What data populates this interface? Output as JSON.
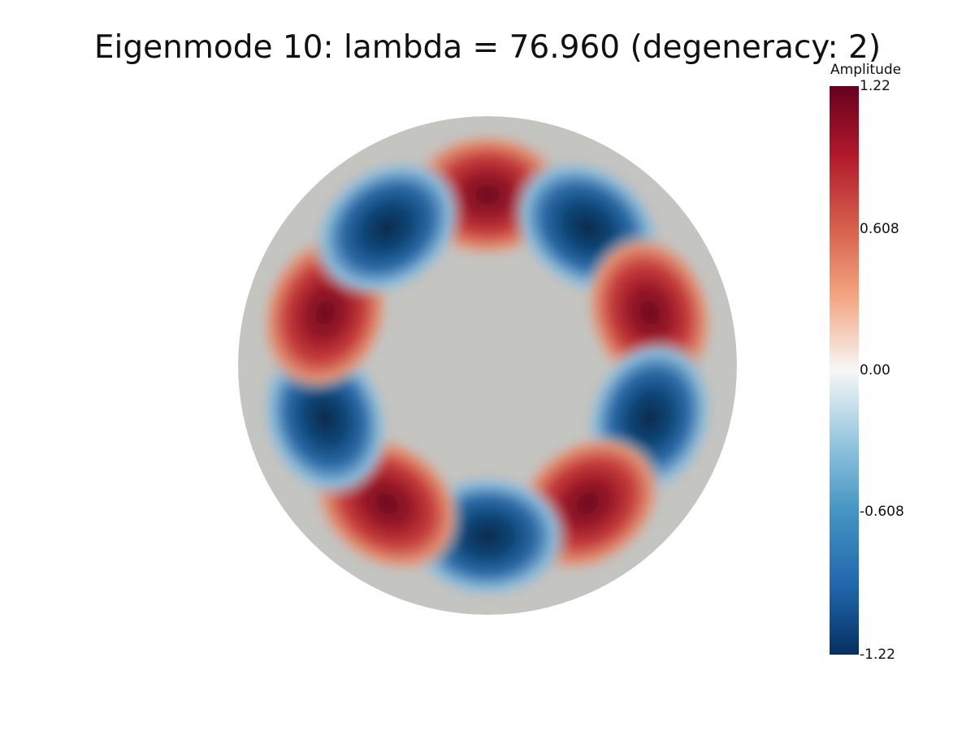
{
  "title": "Eigenmode 10: lambda = 76.960 (degeneracy: 2)",
  "chart_data": {
    "type": "heatmap",
    "title": "Eigenmode 10: lambda = 76.960 (degeneracy: 2)",
    "mode_index": 10,
    "lambda": 76.96,
    "degeneracy": 2,
    "field": "Amplitude",
    "domain_shape": "disk",
    "pattern": "five dipole-like lobe pairs around the rim (10 alternating positive/negative lobes), near-zero center",
    "lobes": [
      {
        "angle_deg": 90,
        "sign": "positive"
      },
      {
        "angle_deg": 54,
        "sign": "negative"
      },
      {
        "angle_deg": 18,
        "sign": "positive"
      },
      {
        "angle_deg": -18,
        "sign": "negative"
      },
      {
        "angle_deg": -54,
        "sign": "positive"
      },
      {
        "angle_deg": -90,
        "sign": "negative"
      },
      {
        "angle_deg": -126,
        "sign": "positive"
      },
      {
        "angle_deg": -162,
        "sign": "negative"
      },
      {
        "angle_deg": 162,
        "sign": "positive"
      },
      {
        "angle_deg": 126,
        "sign": "negative"
      }
    ],
    "value_range": [
      -1.22,
      1.22
    ],
    "colorbar": {
      "title": "Amplitude",
      "ticks": [
        "1.22",
        "0.608",
        "0.00",
        "-0.608",
        "-1.22"
      ],
      "tick_values": [
        1.22,
        0.608,
        0.0,
        -0.608,
        -1.22
      ],
      "colormap": "blue-white-red (diverging)",
      "colors": {
        "max": "#67001f",
        "mid_high": "#ea8e70",
        "zero": "#f7f7f7",
        "mid_low": "#5aa2cc",
        "min": "#053061"
      }
    },
    "background_disk_color": "#c4c4c0"
  }
}
